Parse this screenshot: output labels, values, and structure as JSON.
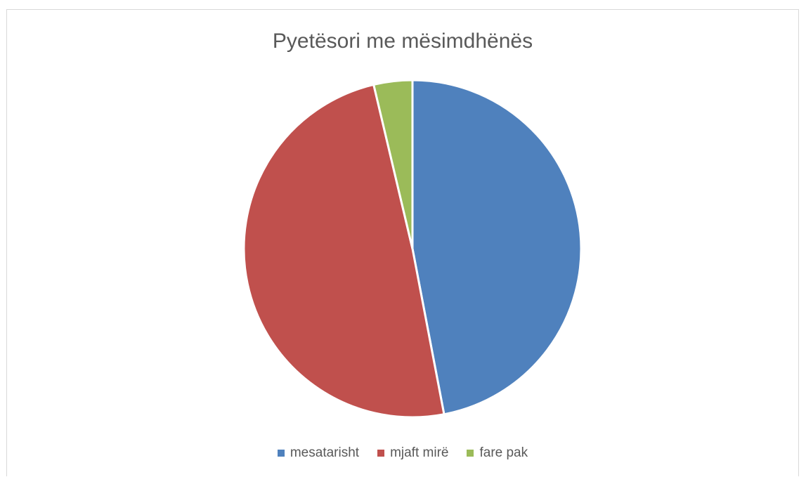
{
  "chart_data": {
    "type": "pie",
    "title": "Pyetësori me mësimdhënës",
    "categories": [
      "mesatarisht",
      "mjaft mirë",
      "fare pak"
    ],
    "values": [
      47,
      49.3,
      3.7
    ],
    "colors": [
      "#4f81bd",
      "#c0504d",
      "#9bbb59"
    ],
    "legend_position": "bottom"
  }
}
